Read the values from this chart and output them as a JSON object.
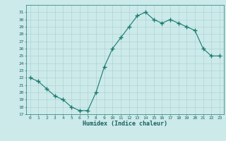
{
  "x": [
    0,
    1,
    2,
    3,
    4,
    5,
    6,
    7,
    8,
    9,
    10,
    11,
    12,
    13,
    14,
    15,
    16,
    17,
    18,
    19,
    20,
    21,
    22,
    23
  ],
  "y": [
    22,
    21.5,
    20.5,
    19.5,
    19.0,
    18.0,
    17.5,
    17.5,
    20.0,
    23.5,
    26.0,
    27.5,
    29.0,
    30.5,
    31.0,
    30.0,
    29.5,
    30.0,
    29.5,
    29.0,
    28.5,
    26.0,
    25.0,
    25.0
  ],
  "xlabel": "Humidex (Indice chaleur)",
  "line_color": "#1a7a6e",
  "marker_color": "#1a7a6e",
  "bg_color": "#cceaea",
  "grid_color": "#aacece",
  "ylim": [
    17,
    32
  ],
  "xlim": [
    -0.5,
    23.5
  ],
  "yticks": [
    17,
    18,
    19,
    20,
    21,
    22,
    23,
    24,
    25,
    26,
    27,
    28,
    29,
    30,
    31
  ],
  "xticks": [
    0,
    1,
    2,
    3,
    4,
    5,
    6,
    7,
    8,
    9,
    10,
    11,
    12,
    13,
    14,
    15,
    16,
    17,
    18,
    19,
    20,
    21,
    22,
    23
  ]
}
